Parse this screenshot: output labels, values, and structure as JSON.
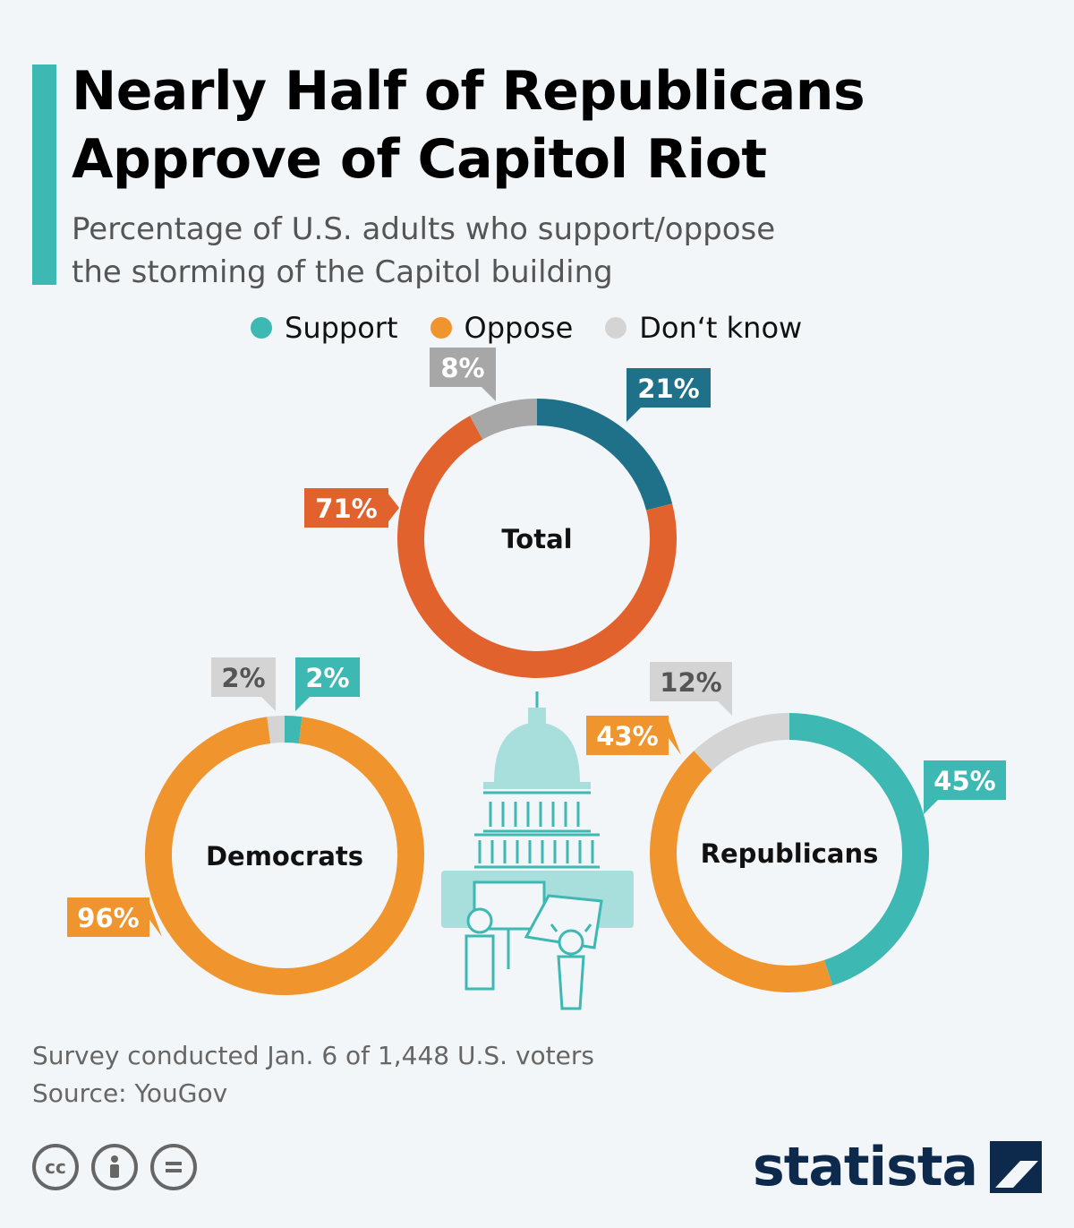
{
  "title": "Nearly Half of Republicans Approve of Capitol Riot",
  "title_line1": "Nearly Half of Republicans",
  "title_line2": "Approve of Capitol Riot",
  "subtitle_line1": "Percentage of U.S. adults who support/oppose",
  "subtitle_line2": "the storming of the Capitol building",
  "legend": [
    {
      "label": "Support",
      "color": "#3db8b3"
    },
    {
      "label": "Oppose",
      "color": "#f0952d"
    },
    {
      "label": "Don‘t know",
      "color": "#d4d4d4"
    }
  ],
  "chart_data": [
    {
      "type": "pie",
      "variant": "donut",
      "title": "Total",
      "categories": [
        "Support",
        "Oppose",
        "Don‘t know"
      ],
      "values": [
        21,
        71,
        8
      ],
      "labels": [
        "21%",
        "71%",
        "8%"
      ],
      "colors": [
        "#1f7089",
        "#e2622e",
        "#a7a7a7"
      ]
    },
    {
      "type": "pie",
      "variant": "donut",
      "title": "Democrats",
      "categories": [
        "Support",
        "Oppose",
        "Don‘t know"
      ],
      "values": [
        2,
        96,
        2
      ],
      "labels": [
        "2%",
        "96%",
        "2%"
      ],
      "colors": [
        "#3db8b3",
        "#f0952d",
        "#d4d4d4"
      ]
    },
    {
      "type": "pie",
      "variant": "donut",
      "title": "Republicans",
      "categories": [
        "Support",
        "Oppose",
        "Don‘t know"
      ],
      "values": [
        45,
        43,
        12
      ],
      "labels": [
        "45%",
        "43%",
        "12%"
      ],
      "colors": [
        "#3db8b3",
        "#f0952d",
        "#d4d4d4"
      ]
    }
  ],
  "footnote_line1": "Survey conducted Jan. 6 of 1,448 U.S. voters",
  "footnote_line2": "Source: YouGov",
  "brand": "statista",
  "license_icons": [
    "cc-icon",
    "attribution-icon",
    "no-derivatives-icon"
  ]
}
